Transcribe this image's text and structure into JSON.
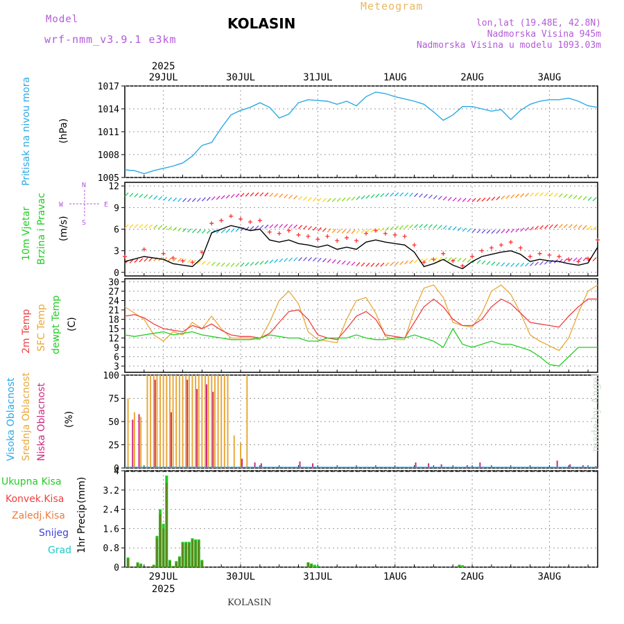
{
  "header": {
    "model_label": "Model",
    "model_name": "wrf-nmm_v3.9.1 e3km",
    "station": "KOLASIN",
    "title": "Meteogram",
    "coords": "lon,lat (19.48E, 42.8N)",
    "elevation": "Nadmorska Visina 945m",
    "model_elevation": "Nadmorska Visina u modelu 1093.03m"
  },
  "footer": {
    "station": "KOLASIN",
    "credit": "made by Angel"
  },
  "time_axis": {
    "year": "2025",
    "labels": [
      "29JUL",
      "30JUL",
      "31JUL",
      "1AUG",
      "2AUG",
      "3AUG"
    ],
    "label_hours": [
      12,
      36,
      60,
      84,
      108,
      132
    ],
    "start_hour": 0,
    "end_hour": 147
  },
  "wind_compass": {
    "w": "W",
    "e": "E",
    "n": "N",
    "s": "S"
  },
  "colors": {
    "pressure": "#2aa9e6",
    "temp2m": "#f04040",
    "sfc": "#e8a83a",
    "dewpt": "#22cc22",
    "wind_speed": "#000000",
    "gust": "#ff3030",
    "cloud_high": "#2aa9e6",
    "cloud_mid": "#e8a83a",
    "cloud_low": "#d02880",
    "precip_total": "#22cc22",
    "precip_conv": "#c02020",
    "precip_frz": "#f07a3a",
    "precip_snow": "#4040e0",
    "precip_grad": "#22c8c8",
    "ylab_wind": "#22cc22",
    "ylab_temp_sfc": "#e8a83a",
    "ylab_purple": "#b25ad8"
  },
  "chart_data": [
    {
      "type": "line",
      "id": "pressure",
      "ylabel": "Pritisak na nivou mora",
      "unit": "(hPa)",
      "ylim": [
        1005,
        1017
      ],
      "yticks": [
        1005,
        1008,
        1011,
        1014,
        1017
      ],
      "series": [
        {
          "name": "MSLP",
          "x": [
            0,
            3,
            6,
            9,
            12,
            15,
            18,
            21,
            24,
            27,
            30,
            33,
            36,
            39,
            42,
            45,
            48,
            51,
            54,
            57,
            60,
            63,
            66,
            69,
            72,
            75,
            78,
            81,
            84,
            87,
            90,
            93,
            96,
            99,
            102,
            105,
            108,
            111,
            114,
            117,
            120,
            123,
            126,
            129,
            132,
            135,
            138,
            141,
            144,
            147
          ],
          "values": [
            1006,
            1005.9,
            1005.5,
            1005.9,
            1006.2,
            1006.5,
            1006.9,
            1007.8,
            1009.2,
            1009.6,
            1011.5,
            1013.2,
            1013.8,
            1014.2,
            1014.8,
            1014.2,
            1012.8,
            1013.3,
            1014.8,
            1015.2,
            1015.1,
            1015.0,
            1014.6,
            1015.0,
            1014.4,
            1015.6,
            1016.2,
            1016.0,
            1015.6,
            1015.3,
            1015.0,
            1014.6,
            1013.6,
            1012.5,
            1013.2,
            1014.3,
            1014.3,
            1014.0,
            1013.7,
            1013.9,
            1012.6,
            1013.8,
            1014.6,
            1015.0,
            1015.2,
            1015.2,
            1015.4,
            1015.0,
            1014.4,
            1014.2
          ]
        }
      ]
    },
    {
      "type": "line",
      "id": "wind",
      "ylabel": "10m Vjetar",
      "ylabel2": "Brzina i Pravac",
      "unit": "(m/s)",
      "ylim": [
        -0.5,
        12.5
      ],
      "yticks": [
        0,
        3,
        6,
        9,
        12
      ],
      "series": [
        {
          "name": "wind speed",
          "x": [
            0,
            6,
            12,
            15,
            18,
            21,
            24,
            27,
            30,
            33,
            36,
            39,
            42,
            45,
            48,
            51,
            54,
            57,
            60,
            63,
            66,
            69,
            72,
            75,
            78,
            81,
            84,
            87,
            90,
            93,
            96,
            99,
            102,
            105,
            108,
            111,
            114,
            117,
            120,
            123,
            126,
            129,
            132,
            135,
            138,
            141,
            144,
            147
          ],
          "values": [
            1.5,
            2.2,
            1.8,
            1.2,
            1.0,
            0.8,
            2.0,
            5.5,
            6.0,
            6.5,
            6.2,
            5.8,
            6.0,
            4.5,
            4.2,
            4.5,
            4.0,
            3.8,
            3.5,
            3.8,
            3.2,
            3.5,
            3.2,
            4.2,
            4.5,
            4.2,
            4.0,
            3.8,
            2.8,
            0.8,
            1.2,
            1.8,
            1.0,
            0.5,
            1.5,
            2.2,
            2.5,
            2.8,
            3.0,
            2.5,
            1.5,
            1.8,
            1.6,
            1.5,
            1.2,
            1.0,
            1.3,
            3.5
          ]
        },
        {
          "name": "gust",
          "x": [
            0,
            6,
            12,
            15,
            18,
            21,
            24,
            27,
            30,
            33,
            36,
            39,
            42,
            45,
            48,
            51,
            54,
            57,
            60,
            63,
            66,
            69,
            72,
            75,
            78,
            81,
            84,
            87,
            90,
            93,
            96,
            99,
            102,
            105,
            108,
            111,
            114,
            117,
            120,
            123,
            126,
            129,
            132,
            135,
            138,
            141,
            144,
            147
          ],
          "values": [
            2.2,
            3.2,
            2.6,
            2.0,
            1.6,
            1.4,
            2.8,
            6.8,
            7.2,
            7.8,
            7.4,
            7.0,
            7.2,
            5.6,
            5.4,
            5.8,
            5.2,
            5.0,
            4.6,
            5.0,
            4.4,
            4.8,
            4.4,
            5.4,
            5.8,
            5.4,
            5.2,
            5.0,
            3.8,
            1.4,
            1.8,
            2.6,
            1.6,
            0.9,
            2.2,
            3.0,
            3.4,
            3.8,
            4.2,
            3.4,
            2.2,
            2.6,
            2.4,
            2.2,
            1.8,
            1.5,
            1.9,
            4.5
          ]
        }
      ]
    },
    {
      "type": "line",
      "id": "temperature",
      "ylabel": "2m Temp",
      "ylabel2": "SFC Temp",
      "ylabel3": "dewpt Temp",
      "unit": "(C)",
      "ylim": [
        1,
        31
      ],
      "yticks": [
        3,
        6,
        9,
        12,
        15,
        18,
        21,
        24,
        27,
        30
      ],
      "series": [
        {
          "name": "2m Temp",
          "x": [
            0,
            3,
            6,
            9,
            12,
            15,
            18,
            21,
            24,
            27,
            30,
            33,
            36,
            39,
            42,
            45,
            48,
            51,
            54,
            57,
            60,
            63,
            66,
            69,
            72,
            75,
            78,
            81,
            84,
            87,
            90,
            93,
            96,
            99,
            102,
            105,
            108,
            111,
            114,
            117,
            120,
            123,
            126,
            129,
            132,
            135,
            138,
            141,
            144,
            147
          ],
          "values": [
            19,
            19.5,
            18.5,
            16.5,
            15,
            14.5,
            14,
            16,
            15,
            16.5,
            14.5,
            13,
            12.5,
            12.5,
            12,
            13.5,
            17,
            20.5,
            21,
            18,
            13,
            12,
            11.5,
            15,
            19,
            20.5,
            18,
            13,
            12.5,
            12,
            17,
            22,
            24.5,
            22,
            18,
            16,
            16,
            18,
            22,
            24.5,
            23,
            20,
            17,
            16.5,
            16,
            15.5,
            19,
            22,
            24.5,
            24.5
          ]
        },
        {
          "name": "SFC Temp",
          "x": [
            0,
            3,
            6,
            9,
            12,
            15,
            18,
            21,
            24,
            27,
            30,
            33,
            36,
            39,
            42,
            45,
            48,
            51,
            54,
            57,
            60,
            63,
            66,
            69,
            72,
            75,
            78,
            81,
            84,
            87,
            90,
            93,
            96,
            99,
            102,
            105,
            108,
            111,
            114,
            117,
            120,
            123,
            126,
            129,
            132,
            135,
            138,
            141,
            144,
            147
          ],
          "values": [
            22,
            20,
            18,
            13,
            11,
            14,
            13,
            17,
            15,
            19,
            15,
            12,
            12,
            12,
            11.5,
            17,
            24,
            27,
            23,
            14,
            11.5,
            11,
            10.5,
            18,
            24,
            25,
            20,
            12.5,
            11.5,
            11.5,
            21,
            28,
            29,
            25,
            17,
            16,
            15.5,
            20,
            27,
            29,
            26,
            20,
            13,
            11,
            9.5,
            8,
            12,
            20,
            27,
            29
          ]
        },
        {
          "name": "dewpt Temp",
          "x": [
            0,
            3,
            6,
            9,
            12,
            15,
            18,
            21,
            24,
            27,
            30,
            33,
            36,
            39,
            42,
            45,
            48,
            51,
            54,
            57,
            60,
            63,
            66,
            69,
            72,
            75,
            78,
            81,
            84,
            87,
            90,
            93,
            96,
            99,
            102,
            105,
            108,
            111,
            114,
            117,
            120,
            123,
            126,
            129,
            132,
            135,
            138,
            141,
            144,
            147
          ],
          "values": [
            13,
            12.5,
            13,
            13.5,
            14,
            13,
            13.5,
            14,
            13,
            12.5,
            12,
            11.5,
            11.5,
            11.5,
            12,
            13,
            12.5,
            12,
            12,
            11,
            11,
            12,
            12,
            12,
            13,
            12,
            11.5,
            11.5,
            12,
            12,
            13,
            12,
            11,
            9,
            15,
            10,
            9,
            10,
            11,
            10,
            10,
            9,
            8,
            6,
            3.5,
            3,
            6,
            9,
            9,
            9
          ]
        }
      ]
    },
    {
      "type": "bar",
      "id": "clouds",
      "ylabel": "Visoka Oblacnost",
      "ylabel2": "Srednja Oblacnost",
      "ylabel3": "Niska Oblacnost",
      "unit": "(%)",
      "ylim": [
        0,
        100
      ],
      "yticks": [
        0,
        25,
        50,
        75,
        100
      ],
      "series": [
        {
          "name": "Srednja Oblacnost",
          "x": [
            1,
            3,
            5,
            7,
            8,
            9,
            10,
            11,
            12,
            13,
            14,
            15,
            16,
            17,
            18,
            19,
            20,
            21,
            22,
            23,
            24,
            25,
            26,
            27,
            28,
            29,
            30,
            31,
            32,
            34,
            36,
            38,
            40,
            42,
            44,
            46,
            48,
            50,
            52,
            54,
            56,
            58,
            60,
            62,
            64,
            66,
            68,
            70,
            72,
            74,
            76,
            78,
            80,
            82,
            84,
            86,
            88,
            90,
            92,
            94,
            96,
            98,
            100,
            102,
            104,
            106,
            108,
            110,
            112,
            114,
            116,
            118,
            120,
            122,
            124,
            126,
            128,
            130,
            132,
            134,
            136,
            138,
            140,
            142,
            144,
            146
          ],
          "values": [
            75,
            60,
            55,
            100,
            100,
            100,
            100,
            100,
            100,
            100,
            100,
            100,
            100,
            100,
            100,
            100,
            100,
            100,
            100,
            100,
            100,
            100,
            100,
            100,
            100,
            100,
            100,
            100,
            100,
            35,
            27,
            100,
            0,
            0,
            0,
            0,
            0,
            0,
            0,
            0,
            0,
            0,
            0,
            0,
            0,
            0,
            0,
            0,
            0,
            0,
            0,
            0,
            0,
            0,
            0,
            0,
            0,
            0,
            0,
            0,
            0,
            0,
            0,
            0,
            0,
            0,
            0,
            0,
            0,
            0,
            0,
            0,
            0,
            0,
            0,
            0,
            0,
            0,
            0,
            0,
            0,
            0,
            0,
            0,
            0,
            0
          ]
        },
        {
          "name": "Niska Oblacnost",
          "x": [
            2,
            4,
            9,
            14,
            19,
            22,
            25,
            27,
            29,
            32,
            36,
            40,
            42,
            44,
            48,
            50,
            54,
            58,
            62,
            64,
            68,
            70,
            72,
            74,
            76,
            78,
            82,
            86,
            90,
            94,
            98,
            102,
            106,
            110,
            114,
            118,
            122,
            126,
            130,
            134,
            138,
            142,
            146
          ],
          "values": [
            52,
            58,
            95,
            60,
            95,
            85,
            90,
            82,
            0,
            0,
            10,
            6,
            5,
            0,
            0,
            0,
            7,
            5,
            0,
            0,
            0,
            0,
            0,
            0,
            0,
            0,
            0,
            0,
            6,
            5,
            4,
            0,
            3,
            6,
            0,
            0,
            0,
            0,
            0,
            8,
            4,
            3,
            2
          ]
        }
      ]
    },
    {
      "type": "bar",
      "id": "precip",
      "ylabel": "1hr Precip",
      "unit": "(mm)",
      "ylim": [
        0,
        4
      ],
      "yticks": [
        0,
        0.8,
        1.6,
        2.4,
        3.2,
        4
      ],
      "series": [
        {
          "name": "Ukupna Kisa",
          "x": [
            1,
            4,
            5,
            9,
            10,
            11,
            12,
            13,
            14,
            15,
            16,
            17,
            18,
            19,
            20,
            21,
            22,
            23,
            24,
            25,
            26,
            27,
            28,
            29,
            30,
            57,
            58,
            59,
            60,
            104,
            105
          ],
          "values": [
            0.4,
            0.2,
            0.15,
            0.1,
            1.3,
            2.4,
            1.8,
            3.8,
            0.3,
            0.05,
            0.25,
            0.45,
            1.05,
            1.05,
            1.05,
            1.2,
            1.15,
            1.15,
            0.3,
            0,
            0,
            0,
            0,
            0,
            0,
            0.2,
            0.15,
            0.1,
            0.05,
            0.1,
            0.08
          ]
        },
        {
          "name": "Konvek.Kisa",
          "x": [
            1,
            4,
            5,
            9,
            10,
            11,
            12,
            13,
            14,
            15,
            16,
            17,
            18,
            19,
            20,
            21,
            22,
            23,
            24,
            57,
            58,
            104
          ],
          "values": [
            0.35,
            0.15,
            0.1,
            0.08,
            1.2,
            2.2,
            1.6,
            3.5,
            0.25,
            0.04,
            0.2,
            0.4,
            1.0,
            1.0,
            1.0,
            1.15,
            1.1,
            1.1,
            0.25,
            0.18,
            0.12,
            0.08
          ]
        }
      ],
      "legend": [
        "Ukupna Kisa",
        "Konvek.Kisa",
        "Zaledj.Kisa",
        "Snijeg",
        "Grad"
      ]
    }
  ]
}
